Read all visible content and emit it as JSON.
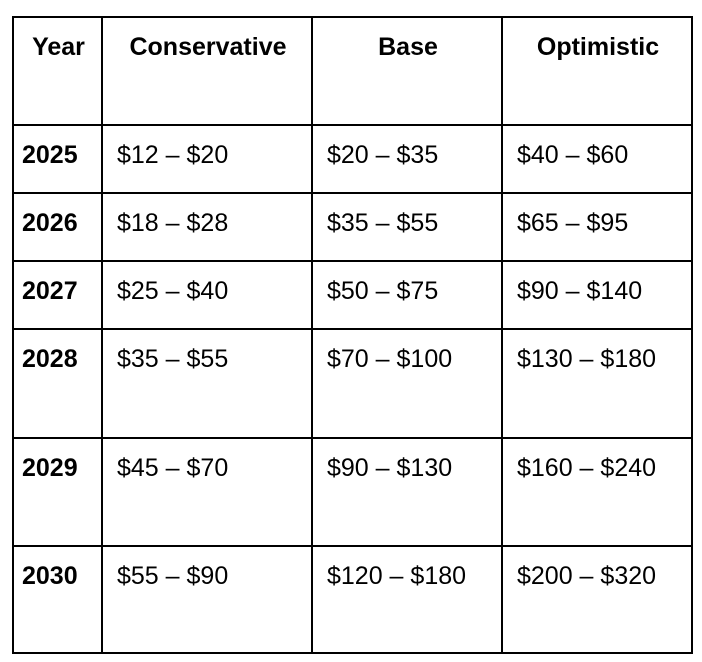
{
  "table": {
    "header": [
      "Year",
      "Conservative",
      "Base",
      "Optimistic"
    ],
    "rows": [
      [
        "2025",
        "$12 – $20",
        "$20 – $35",
        "$40 – $60"
      ],
      [
        "2026",
        "$18 – $28",
        "$35 – $55",
        "$65 – $95"
      ],
      [
        "2027",
        "$25 – $40",
        "$50 – $75",
        "$90 – $140"
      ],
      [
        "2028",
        "$35 – $55",
        "$70 – $100",
        "$130 – $180"
      ],
      [
        "2029",
        "$45 – $70",
        "$90 – $130",
        "$160 – $240"
      ],
      [
        "2030",
        "$55 – $90",
        "$120 – $180",
        "$200 – $320"
      ]
    ]
  }
}
